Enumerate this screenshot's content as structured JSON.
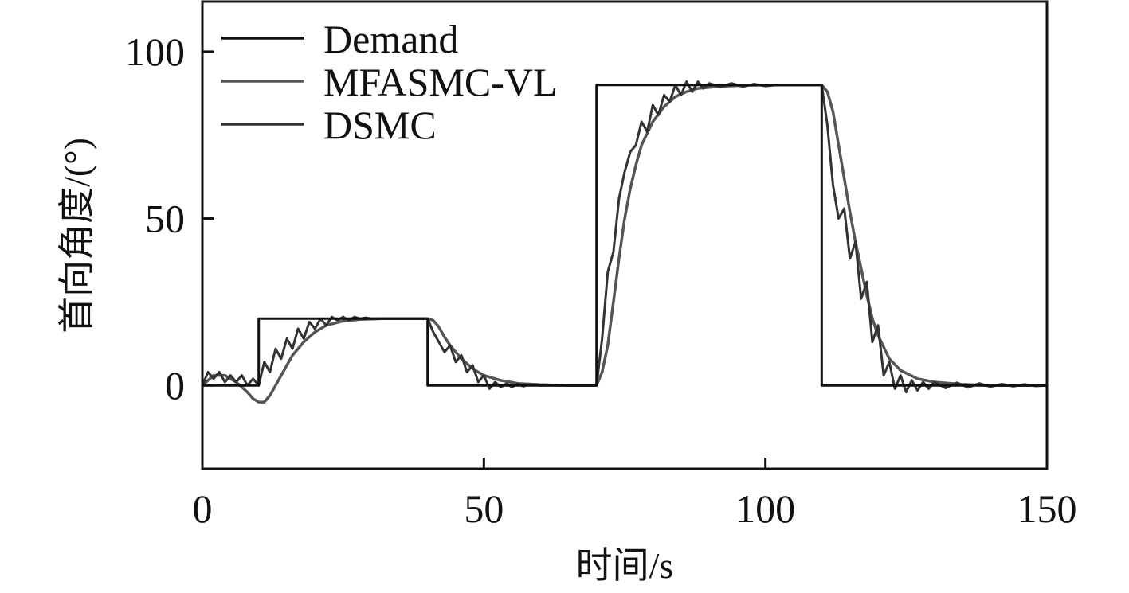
{
  "chart_data": {
    "type": "line",
    "title": "",
    "xlabel": "时间/s",
    "ylabel": "首向角度/(°)",
    "xlim": [
      0,
      150
    ],
    "ylim": [
      -25,
      115
    ],
    "x_ticks": [
      0,
      50,
      100,
      150
    ],
    "y_ticks": [
      0,
      50,
      100
    ],
    "x_tick_labels": [
      "0",
      "50",
      "100",
      "150"
    ],
    "y_tick_labels": [
      "0",
      "50",
      "100"
    ],
    "grid": false,
    "legend_position": "top-left",
    "series": [
      {
        "name": "Demand",
        "color": "#111111",
        "x": [
          0,
          10,
          10,
          40,
          40,
          70,
          70,
          110,
          110,
          150
        ],
        "y": [
          0,
          0,
          20,
          20,
          0,
          0,
          90,
          90,
          0,
          0
        ]
      },
      {
        "name": "MFASMC-VL",
        "color": "#555555",
        "x": [
          0,
          2,
          4,
          6,
          8,
          9,
          10,
          11,
          12,
          13,
          14,
          15,
          16,
          18,
          20,
          22,
          25,
          28,
          32,
          36,
          40,
          41,
          42,
          43,
          44,
          46,
          48,
          50,
          53,
          56,
          60,
          65,
          70,
          71,
          72,
          73,
          74,
          75,
          76,
          77,
          78,
          80,
          82,
          84,
          86,
          88,
          92,
          96,
          100,
          105,
          110,
          111,
          112,
          113,
          114,
          115,
          116,
          117,
          118,
          119,
          120,
          122,
          124,
          127,
          130,
          135,
          140,
          150
        ],
        "y": [
          0,
          3,
          3,
          1,
          -2,
          -4,
          -5,
          -5,
          -3,
          0,
          3,
          6,
          9,
          13,
          16,
          18,
          19.3,
          19.8,
          20,
          20,
          20,
          19.5,
          17.5,
          14.5,
          12,
          8,
          5,
          3,
          1.5,
          0.6,
          0.2,
          0,
          0,
          4,
          12,
          25,
          38,
          50,
          59,
          66,
          72,
          79,
          83.5,
          86.5,
          88,
          89,
          89.6,
          89.9,
          90,
          90,
          90,
          88,
          82,
          72,
          62,
          52,
          43,
          35,
          27,
          20,
          15,
          8,
          4.5,
          2,
          1,
          0.3,
          0,
          0
        ]
      },
      {
        "name": "DSMC",
        "color": "#333333",
        "x": [
          0,
          1,
          2,
          3,
          4,
          5,
          6,
          7,
          8,
          9,
          10,
          11,
          12,
          13,
          14,
          15,
          16,
          17,
          18,
          19,
          20,
          21,
          22,
          23,
          24,
          25,
          26,
          27,
          28,
          29,
          30,
          32,
          34,
          36,
          38,
          40,
          41,
          42,
          43,
          44,
          45,
          46,
          47,
          48,
          49,
          50,
          51,
          52,
          53,
          54,
          55,
          56,
          57,
          58,
          60,
          62,
          64,
          66,
          68,
          70,
          71,
          72,
          73,
          74,
          75,
          76,
          77,
          78,
          79,
          80,
          81,
          82,
          83,
          84,
          85,
          86,
          87,
          88,
          89,
          90,
          92,
          94,
          96,
          98,
          100,
          102,
          104,
          106,
          108,
          110,
          111,
          112,
          113,
          114,
          115,
          116,
          117,
          118,
          119,
          120,
          121,
          122,
          123,
          124,
          125,
          126,
          127,
          128,
          129,
          130,
          132,
          134,
          136,
          138,
          140,
          142,
          144,
          146,
          148,
          150
        ],
        "y": [
          0,
          4,
          2,
          4,
          1,
          3,
          1,
          3,
          0,
          2,
          0,
          7,
          4,
          11,
          8,
          14,
          11,
          17,
          14,
          19,
          17,
          20,
          18,
          20.5,
          19.5,
          20.5,
          19.5,
          20.5,
          20,
          20.3,
          20,
          20,
          20,
          20,
          20,
          20,
          16,
          13,
          10,
          12,
          7,
          9,
          4,
          6,
          1,
          3,
          -1,
          1,
          -0.5,
          0.5,
          -0.5,
          0.5,
          -0.3,
          0.3,
          0,
          0,
          0,
          0,
          0,
          0,
          14,
          34,
          40,
          56,
          64,
          70,
          72,
          79,
          76,
          84,
          81,
          87,
          85,
          90,
          87,
          91,
          88,
          91,
          89,
          90.5,
          89.5,
          90.5,
          89.5,
          90.3,
          89.7,
          90,
          90,
          90,
          90,
          90,
          78,
          60,
          50,
          53,
          38,
          43,
          26,
          31,
          13,
          18,
          3,
          7,
          -1,
          3,
          -2,
          1.5,
          -1.5,
          1,
          -1,
          1,
          -0.8,
          0.8,
          -0.6,
          0.6,
          -0.4,
          0.4,
          -0.3,
          0.3,
          -0.2,
          0
        ]
      }
    ]
  }
}
